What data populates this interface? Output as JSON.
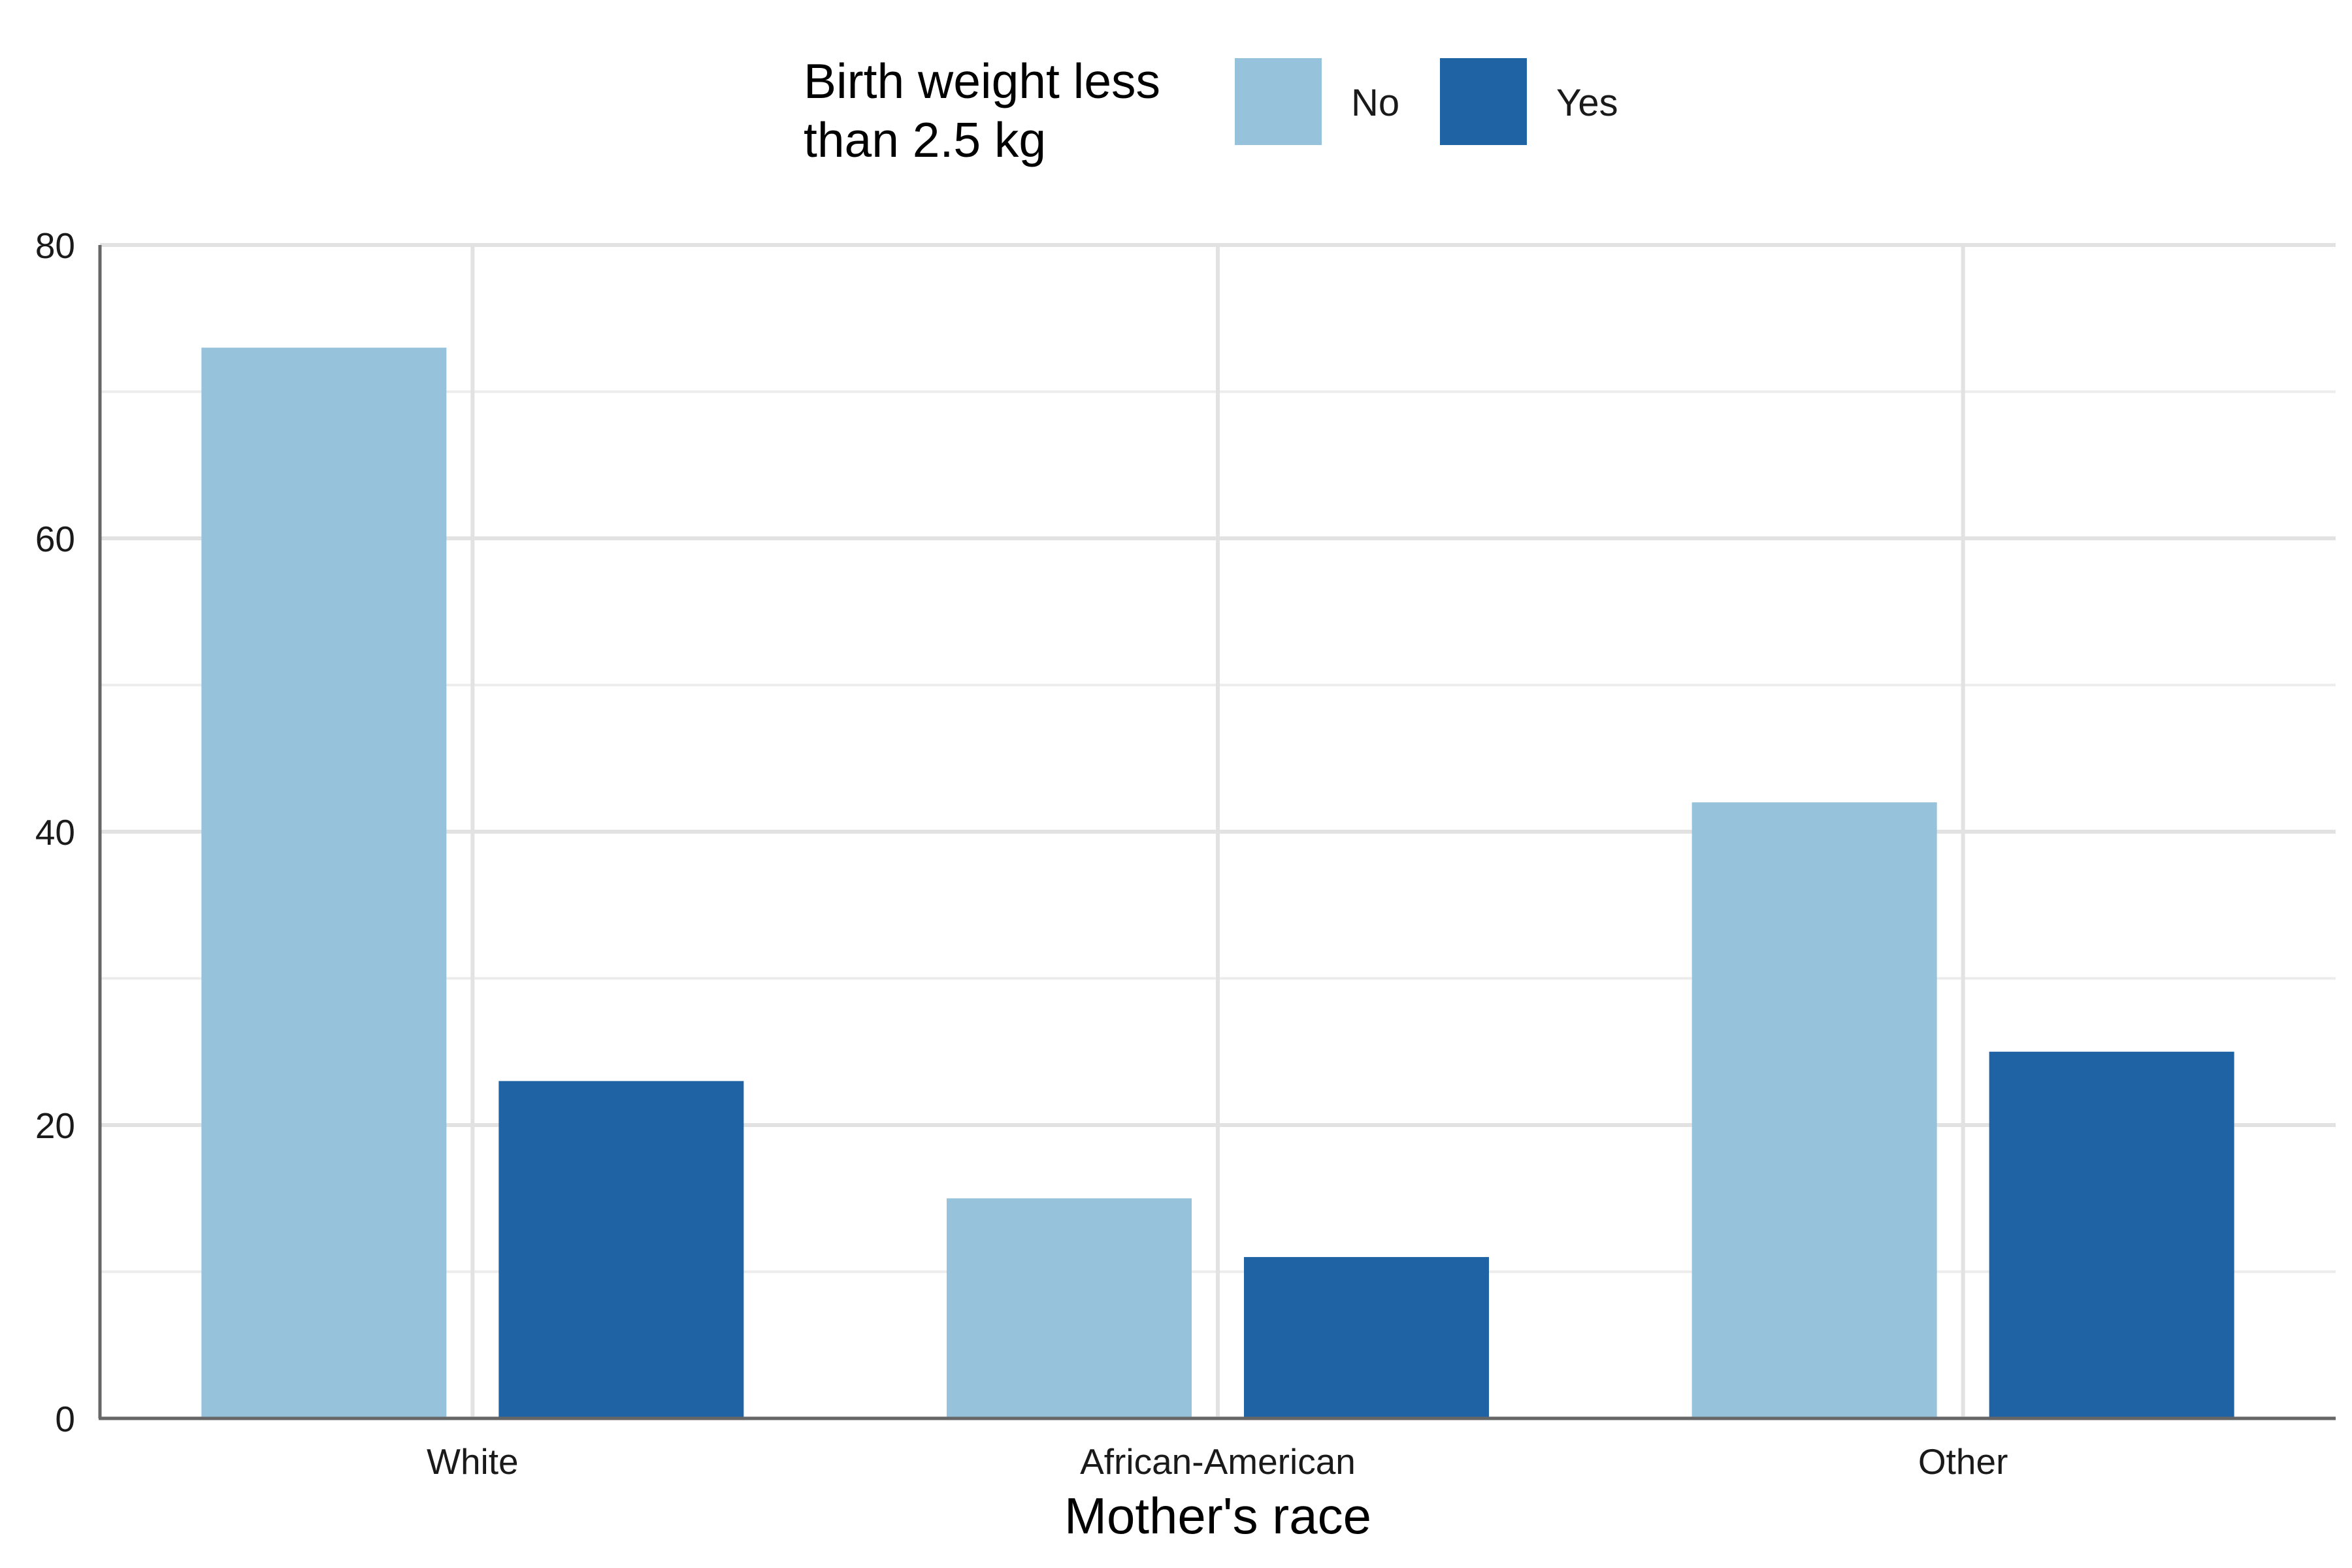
{
  "chart_data": {
    "type": "bar",
    "categories": [
      "White",
      "African-American",
      "Other"
    ],
    "series": [
      {
        "name": "No",
        "values": [
          73,
          15,
          42
        ],
        "color": "#97c2dc"
      },
      {
        "name": "Yes",
        "values": [
          23,
          11,
          25
        ],
        "color": "#1f63a5"
      }
    ],
    "xlabel": "Mother's race",
    "ylabel": "",
    "ylim": [
      0,
      80
    ],
    "yticks": [
      "0",
      "20",
      "40",
      "60",
      "80"
    ],
    "grid": true,
    "legend": {
      "title_lines": [
        "Birth weight less",
        "than 2.5 kg"
      ],
      "position": "top"
    }
  }
}
